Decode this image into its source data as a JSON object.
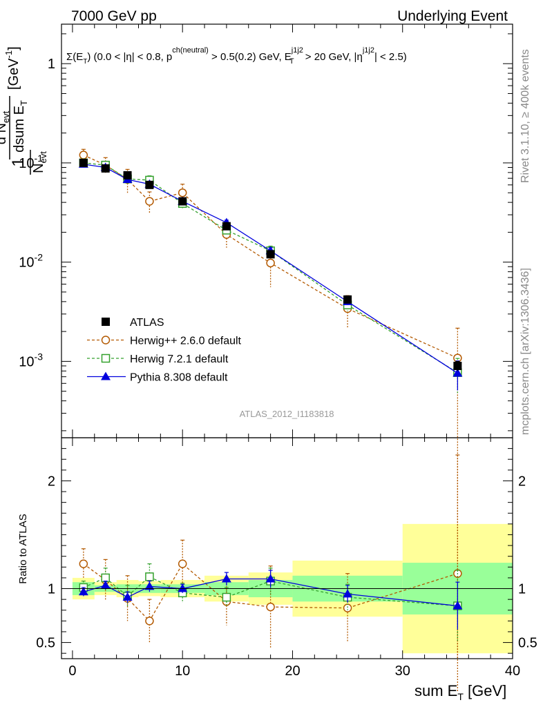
{
  "header": {
    "left": "7000 GeV pp",
    "right": "Underlying Event"
  },
  "subtitle": "Σ(E_T) (0.0 < |η| < 0.8, p^{ch(neutral)} > 0.5(0.2) GeV, E_T^{j1j2} > 20 GeV, |η^{j1j2}| < 2.5)",
  "side_labels": {
    "rivet": "Rivet 3.1.10, ≥ 400k events",
    "mcplots": "mcplots.cern.ch [arXiv:1306.3436]"
  },
  "analysis_id": "ATLAS_2012_I1183818",
  "chart_data": [
    {
      "type": "scatter",
      "panel": "main",
      "ylabel": "1/N_evt dN_evt/dsum E_T [GeV^-1]",
      "yscale": "log",
      "ylim": [
        0.00017,
        2.5
      ],
      "xlim": [
        -1,
        40
      ],
      "y_ticks": [
        {
          "value": 1,
          "label": "1"
        },
        {
          "value": 0.1,
          "label": "10^-1"
        },
        {
          "value": 0.01,
          "label": "10^-2"
        },
        {
          "value": 0.001,
          "label": "10^-3"
        }
      ],
      "legend_position": "lower-left",
      "series": [
        {
          "name": "ATLAS",
          "color": "#000000",
          "marker": "square-filled",
          "x": [
            1,
            3,
            5,
            7,
            10,
            14,
            18,
            25,
            35
          ],
          "y": [
            0.1,
            0.088,
            0.075,
            0.06,
            0.041,
            0.023,
            0.012,
            0.0042,
            0.0009
          ],
          "yerr": [
            0.003,
            0.003,
            0.003,
            0.002,
            0.0015,
            0.001,
            0.0006,
            0.0003,
            0.0001
          ]
        },
        {
          "name": "Herwig++ 2.6.0 default",
          "color": "#b35900",
          "marker": "circle-open",
          "dash": "4,3",
          "x": [
            1,
            3,
            5,
            7,
            10,
            14,
            18,
            25,
            35
          ],
          "y": [
            0.12,
            0.095,
            0.068,
            0.041,
            0.05,
            0.019,
            0.0098,
            0.0034,
            0.00108
          ],
          "yerr": [
            0.017,
            0.018,
            0.018,
            0.01,
            0.011,
            0.005,
            0.0042,
            0.0012,
            0.00108
          ]
        },
        {
          "name": "Herwig 7.2.1 default",
          "color": "#33a02c",
          "marker": "square-open",
          "dash": "4,3",
          "x": [
            1,
            3,
            5,
            7,
            10,
            14,
            18,
            25,
            35
          ],
          "y": [
            0.1,
            0.095,
            0.069,
            0.067,
            0.039,
            0.021,
            0.013,
            0.0037,
            0.00077
          ],
          "yerr": [
            0.006,
            0.008,
            0.008,
            0.007,
            0.004,
            0.002,
            0.0015,
            0.0005,
            0.0003
          ]
        },
        {
          "name": "Pythia 8.308 default",
          "color": "#0000dd",
          "marker": "triangle-filled",
          "x": [
            1,
            3,
            5,
            7,
            10,
            14,
            18,
            25,
            35
          ],
          "y": [
            0.097,
            0.09,
            0.068,
            0.061,
            0.041,
            0.025,
            0.013,
            0.004,
            0.00076
          ],
          "yerr": [
            0.004,
            0.004,
            0.004,
            0.003,
            0.002,
            0.0015,
            0.001,
            0.0003,
            0.00025
          ]
        }
      ]
    },
    {
      "type": "scatter",
      "panel": "ratio",
      "xlabel": "sum E_T [GeV]",
      "ylabel": "Ratio to ATLAS",
      "ylim": [
        0.35,
        2.4
      ],
      "xlim": [
        -1,
        40
      ],
      "x_ticks": [
        0,
        10,
        20,
        30,
        40
      ],
      "y_ticks": [
        0.5,
        1,
        2
      ],
      "bins": [
        [
          0,
          2
        ],
        [
          2,
          4
        ],
        [
          4,
          6
        ],
        [
          6,
          8
        ],
        [
          8,
          12
        ],
        [
          12,
          16
        ],
        [
          16,
          20
        ],
        [
          20,
          30
        ],
        [
          30,
          40
        ]
      ],
      "band_inner": [
        0.06,
        0.03,
        0.04,
        0.04,
        0.04,
        0.06,
        0.08,
        0.12,
        0.24
      ],
      "band_outer": [
        0.1,
        0.06,
        0.08,
        0.07,
        0.08,
        0.12,
        0.15,
        0.26,
        0.6
      ],
      "band_colors": {
        "inner": "#99ff99",
        "outer": "#ffff99"
      },
      "series": [
        {
          "name": "Herwig++ 2.6.0 default",
          "color": "#b35900",
          "marker": "circle-open",
          "dash": "4,3",
          "x": [
            1,
            3,
            5,
            7,
            10,
            14,
            18,
            25,
            35
          ],
          "y": [
            1.23,
            1.08,
            0.91,
            0.7,
            1.23,
            0.88,
            0.83,
            0.82,
            1.14
          ],
          "yerr": [
            0.14,
            0.19,
            0.21,
            0.2,
            0.22,
            0.22,
            0.38,
            0.32,
            1.1
          ]
        },
        {
          "name": "Herwig 7.2.1 default",
          "color": "#33a02c",
          "marker": "square-open",
          "dash": "4,3",
          "x": [
            1,
            3,
            5,
            7,
            10,
            14,
            18,
            25,
            35
          ],
          "y": [
            1.01,
            1.1,
            0.93,
            1.11,
            0.96,
            0.92,
            1.07,
            0.92,
            0.84
          ],
          "yerr": [
            0.06,
            0.09,
            0.1,
            0.12,
            0.09,
            0.09,
            0.12,
            0.12,
            0.33
          ]
        },
        {
          "name": "Pythia 8.308 default",
          "color": "#0000dd",
          "marker": "triangle-filled",
          "x": [
            1,
            3,
            5,
            7,
            10,
            14,
            18,
            25,
            35
          ],
          "y": [
            0.97,
            1.03,
            0.92,
            1.02,
            1.0,
            1.09,
            1.09,
            0.95,
            0.84
          ],
          "yerr": [
            0.04,
            0.04,
            0.05,
            0.05,
            0.04,
            0.06,
            0.08,
            0.08,
            0.22
          ]
        }
      ]
    }
  ]
}
